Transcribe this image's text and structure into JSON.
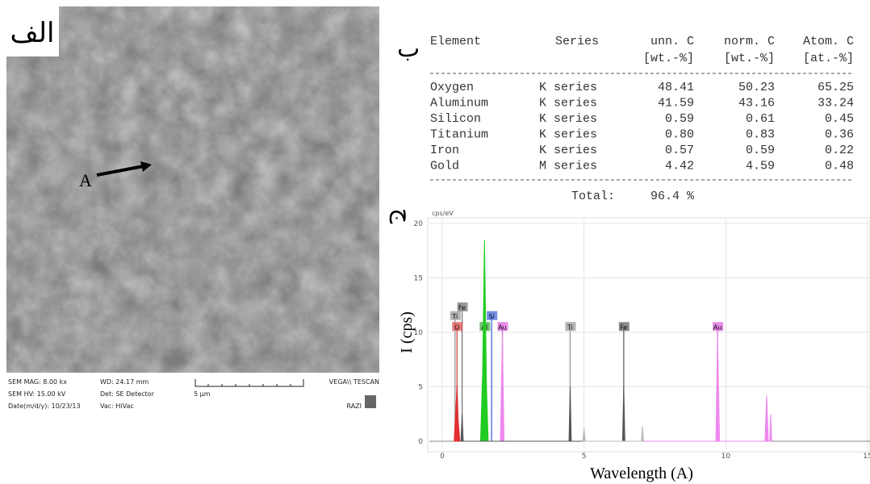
{
  "panels": {
    "sem": "الف",
    "table": "ب",
    "chart": "ج"
  },
  "sem_image": {
    "marker": "A",
    "mag": "SEM MAG: 8.00 kx",
    "wd": "WD: 24.17 mm",
    "vendor": "VEGA\\\\ TESCAN",
    "hv": "SEM HV: 15.00 kV",
    "detector": "Det: SE Detector",
    "scale": "5 µm",
    "date": "Date(m/d/y): 10/23/13",
    "vac": "Vac: HiVac",
    "lab": "RAZI"
  },
  "table": {
    "headers": [
      "Element",
      "Series",
      "unn. C",
      "norm. C",
      "Atom. C"
    ],
    "units": [
      "[wt.-%]",
      "[wt.-%]",
      "[at.-%]"
    ],
    "rows": [
      [
        "Oxygen",
        "K series",
        "48.41",
        "50.23",
        "65.25"
      ],
      [
        "Aluminum",
        "K series",
        "41.59",
        "43.16",
        "33.24"
      ],
      [
        "Silicon",
        "K series",
        "0.59",
        "0.61",
        "0.45"
      ],
      [
        "Titanium",
        "K series",
        "0.80",
        "0.83",
        "0.36"
      ],
      [
        "Iron",
        "K series",
        "0.57",
        "0.59",
        "0.22"
      ],
      [
        "Gold",
        "M series",
        "4.42",
        "4.59",
        "0.48"
      ]
    ],
    "total_label": "Total:",
    "total": "96.4 %"
  },
  "chart_data": {
    "type": "area",
    "y_unit": "cps/eV",
    "xlabel": "Wavelength (A)",
    "ylabel": "I (cps)",
    "xlim": [
      0,
      15
    ],
    "ylim": [
      0,
      20
    ],
    "xticks": [
      0,
      5,
      10,
      15
    ],
    "yticks": [
      0,
      5,
      10,
      15,
      20
    ],
    "grid": true,
    "series": [
      {
        "color": "#e03030",
        "x": [
          0.42,
          0.48,
          0.52,
          0.56,
          0.62
        ],
        "values": [
          0,
          3,
          5.2,
          2,
          0
        ]
      },
      {
        "color": "#22cc22",
        "x": [
          1.35,
          1.42,
          1.49,
          1.56,
          1.62
        ],
        "values": [
          0,
          6,
          18.5,
          5,
          0
        ]
      },
      {
        "color": "#ee88ee",
        "x": [
          2.05,
          2.12,
          2.18,
          9.65,
          9.71,
          9.78,
          11.38,
          11.44,
          11.5,
          11.55,
          11.58,
          11.62
        ],
        "values": [
          0,
          9.8,
          0,
          0,
          9.8,
          0,
          0,
          4.2,
          0,
          0,
          2.5,
          0
        ]
      },
      {
        "color": "#555555",
        "x": [
          0.66,
          0.7,
          0.74,
          4.47,
          4.51,
          4.55,
          6.36,
          6.4,
          6.44
        ],
        "values": [
          0,
          2.5,
          0,
          0,
          5,
          0,
          0,
          5.1,
          0
        ]
      },
      {
        "color": "#bbbbbb",
        "x": [
          4.95,
          5.0,
          5.05,
          7.02,
          7.06,
          7.1
        ],
        "values": [
          0,
          1.2,
          0,
          0,
          1.4,
          0
        ]
      }
    ],
    "markers": [
      {
        "label": "Ti",
        "x": 0.45,
        "y": 11.5,
        "color": "#999999"
      },
      {
        "label": "Fe",
        "x": 0.7,
        "y": 12.3,
        "color": "#777777"
      },
      {
        "label": "O",
        "x": 0.52,
        "y": 10.5,
        "color": "#e05050"
      },
      {
        "label": "Al",
        "x": 1.49,
        "y": 10.5,
        "color": "#44aa44"
      },
      {
        "label": "Si",
        "x": 1.74,
        "y": 11.5,
        "color": "#4466dd"
      },
      {
        "label": "Au",
        "x": 2.12,
        "y": 10.5,
        "color": "#dd66dd"
      },
      {
        "label": "Ti",
        "x": 4.51,
        "y": 10.5,
        "color": "#999999"
      },
      {
        "label": "Fe",
        "x": 6.4,
        "y": 10.5,
        "color": "#666666"
      },
      {
        "label": "Au",
        "x": 9.71,
        "y": 10.5,
        "color": "#dd66dd"
      }
    ]
  }
}
